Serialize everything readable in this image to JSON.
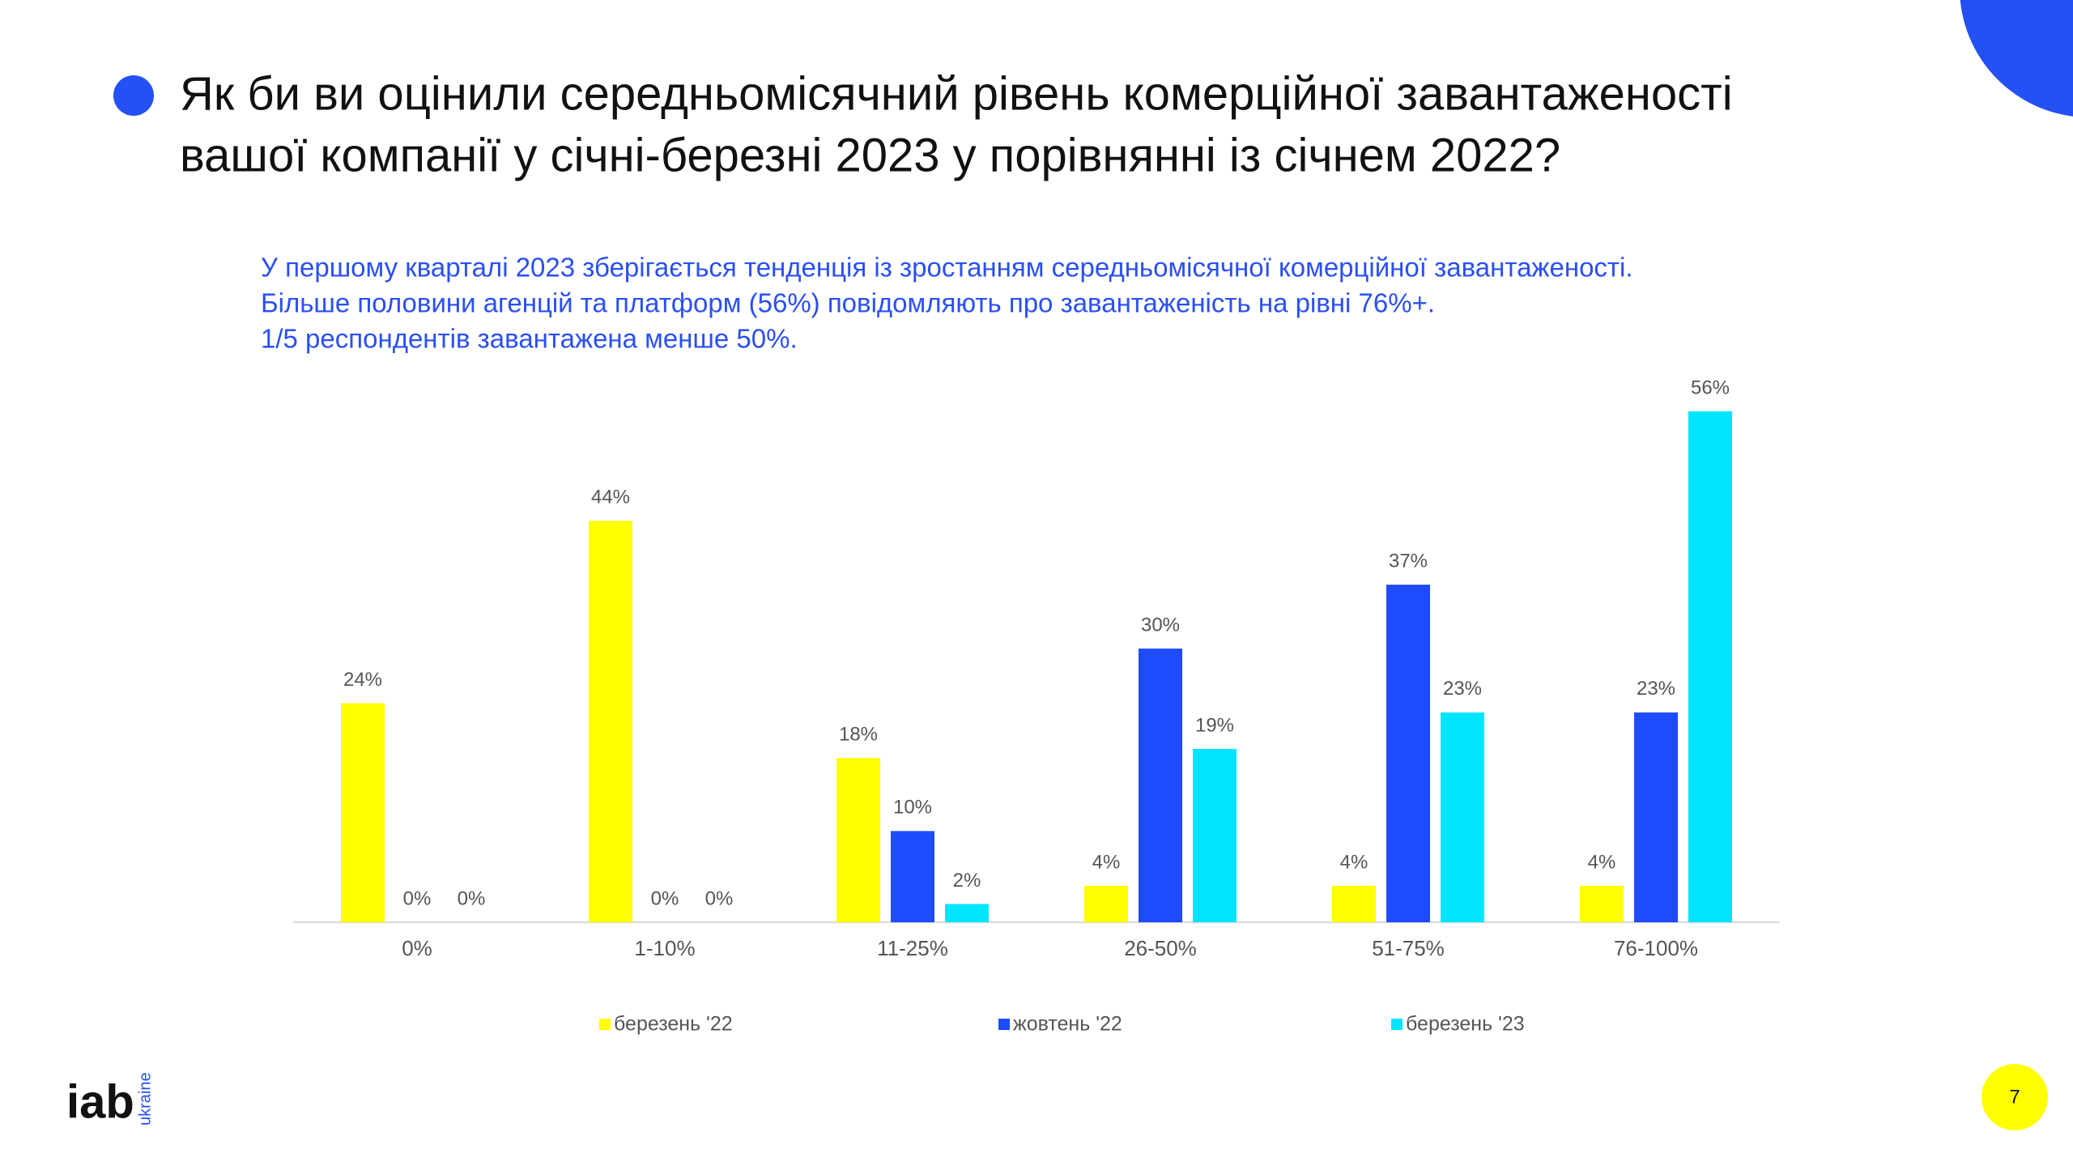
{
  "chart_data": {
    "type": "bar",
    "title": [
      "Як би ви оцінили середньомісячний рівень комерційної завантаженості",
      "вашої компанії у січні-березні 2023 у порівнянні із січнем 2022?"
    ],
    "subtitle": [
      "У першому кварталі 2023 зберігається тенденція із зростанням середньомісячної комерційної завантаженості.",
      "Більше половини агенцій та платформ (56%) повідомляють про завантаженість на рівні 76%+.",
      "1/5 респондентів завантажена менше 50%."
    ],
    "categories": [
      "0%",
      "1-10%",
      "11-25%",
      "26-50%",
      "51-75%",
      "76-100%"
    ],
    "series": [
      {
        "name": "березень '22",
        "color": "#ffff00",
        "values": [
          24,
          44,
          18,
          4,
          4,
          4
        ],
        "value_labels": [
          "24%",
          "44%",
          "18%",
          "4%",
          "4%",
          "4%"
        ]
      },
      {
        "name": "жовтень '22",
        "color": "#1f4bff",
        "values": [
          0,
          0,
          10,
          30,
          37,
          23
        ],
        "value_labels": [
          "0%",
          "0%",
          "10%",
          "30%",
          "37%",
          "23%"
        ]
      },
      {
        "name": "березень '23",
        "color": "#00e5ff",
        "values": [
          0,
          0,
          2,
          19,
          23,
          56
        ],
        "value_labels": [
          "0%",
          "0%",
          "2%",
          "19%",
          "23%",
          "56%"
        ]
      }
    ]
  },
  "logo": {
    "text": "iab",
    "sub": "ukraine"
  },
  "page_number": "7"
}
